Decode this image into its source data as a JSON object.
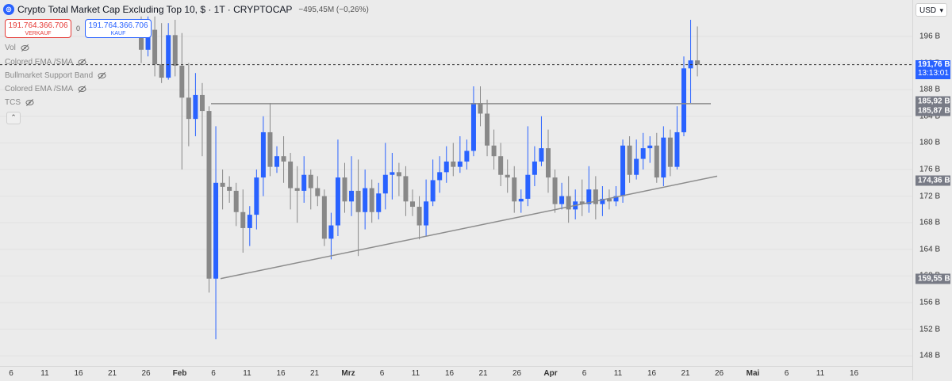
{
  "header": {
    "title": "Crypto Total Market Cap Excluding Top 10, $ · 1T · CRYPTOCAP",
    "change": "−495,45M (−0,26%)",
    "symbol_icon": "globe-icon"
  },
  "trade": {
    "sell_price": "191.764.366.706",
    "sell_label": "VERKAUF",
    "buy_price": "191.764.366.706",
    "buy_label": "KAUF",
    "spread": "0",
    "sell_color": "#e53935",
    "buy_color": "#2962ff"
  },
  "indicators": [
    {
      "label": "Vol"
    },
    {
      "label": "Colored EMA /SMA"
    },
    {
      "label": "Bullmarket Support Band"
    },
    {
      "label": "Colored EMA /SMA"
    },
    {
      "label": "TCS"
    }
  ],
  "currency": "USD",
  "price_axis": {
    "ticks": [
      "196 B",
      "192 B",
      "188 B",
      "184 B",
      "180 B",
      "176 B",
      "172 B",
      "168 B",
      "164 B",
      "160 B",
      "156 B",
      "152 B",
      "148 B"
    ],
    "tags": [
      {
        "text": "191,76 B",
        "sub": "13:13:01",
        "bg": "#2962ff",
        "fg": "#ffffff",
        "value": 191.76
      },
      {
        "text": "185,92 B",
        "bg": "#787b86",
        "fg": "#ffffff",
        "value": 185.92
      },
      {
        "text": "185,87 B",
        "bg": "#787b86",
        "fg": "#ffffff",
        "value": 185.87
      },
      {
        "text": "174,36 B",
        "bg": "#787b86",
        "fg": "#ffffff",
        "value": 174.36
      },
      {
        "text": "159,55 B",
        "bg": "#787b86",
        "fg": "#ffffff",
        "value": 159.55
      }
    ]
  },
  "time_axis": {
    "labels": [
      "6",
      "11",
      "16",
      "21",
      "26",
      "Feb",
      "6",
      "11",
      "16",
      "21",
      "Mrz",
      "6",
      "11",
      "16",
      "21",
      "26",
      "Apr",
      "6",
      "11",
      "16",
      "21",
      "26",
      "Mai",
      "6",
      "11",
      "16"
    ],
    "month_labels": [
      "Feb",
      "Mrz",
      "Apr",
      "Mai"
    ]
  },
  "colors": {
    "up": "#2962ff",
    "down": "#888888",
    "background": "#ebebeb",
    "trendline": "#8c8c8c"
  },
  "chart_data": {
    "type": "candlestick",
    "title": "Crypto Total Market Cap Excluding Top 10, $ · 1T · CRYPTOCAP",
    "unit": "B",
    "ylim": [
      148,
      200
    ],
    "current_price": 191.76,
    "resistance_level": 185.9,
    "support_trendline": [
      {
        "date": "Feb 6",
        "value": 159.6
      },
      {
        "date": "Apr 21",
        "value": 175.0
      }
    ],
    "candles": [
      {
        "date": "Jan 26",
        "o": 196.0,
        "c": 194.0,
        "h": 199.0,
        "l": 192.0
      },
      {
        "date": "Jan 27",
        "o": 194.0,
        "c": 197.5,
        "h": 199.0,
        "l": 193.0
      },
      {
        "date": "Jan 28",
        "o": 197.0,
        "c": 191.8,
        "h": 199.0,
        "l": 190.0
      },
      {
        "date": "Jan 29",
        "o": 191.8,
        "c": 189.8,
        "h": 198.0,
        "l": 189.0
      },
      {
        "date": "Jan 30",
        "o": 189.8,
        "c": 196.2,
        "h": 198.0,
        "l": 189.5
      },
      {
        "date": "Jan 31",
        "o": 196.2,
        "c": 191.6,
        "h": 198.5,
        "l": 190.0
      },
      {
        "date": "Feb 1",
        "o": 191.6,
        "c": 186.8,
        "h": 196.5,
        "l": 176.0
      },
      {
        "date": "Feb 2",
        "o": 186.8,
        "c": 183.6,
        "h": 192.0,
        "l": 179.5
      },
      {
        "date": "Feb 3",
        "o": 183.6,
        "c": 187.2,
        "h": 190.5,
        "l": 181.0
      },
      {
        "date": "Feb 4",
        "o": 187.2,
        "c": 184.8,
        "h": 189.0,
        "l": 178.0
      },
      {
        "date": "Feb 5",
        "o": 184.8,
        "c": 159.6,
        "h": 185.5,
        "l": 157.5
      },
      {
        "date": "Feb 6",
        "o": 159.6,
        "c": 174.0,
        "h": 182.5,
        "l": 150.5
      },
      {
        "date": "Feb 7",
        "o": 174.0,
        "c": 173.4,
        "h": 176.0,
        "l": 170.0
      },
      {
        "date": "Feb 8",
        "o": 173.4,
        "c": 172.8,
        "h": 175.0,
        "l": 171.0
      },
      {
        "date": "Feb 9",
        "o": 172.8,
        "c": 169.6,
        "h": 174.0,
        "l": 167.5
      },
      {
        "date": "Feb 10",
        "o": 169.6,
        "c": 167.2,
        "h": 173.0,
        "l": 163.5
      },
      {
        "date": "Feb 11",
        "o": 167.2,
        "c": 169.2,
        "h": 170.5,
        "l": 164.5
      },
      {
        "date": "Feb 12",
        "o": 169.2,
        "c": 174.8,
        "h": 176.0,
        "l": 167.0
      },
      {
        "date": "Feb 13",
        "o": 174.8,
        "c": 181.6,
        "h": 184.0,
        "l": 172.0
      },
      {
        "date": "Feb 14",
        "o": 181.6,
        "c": 176.4,
        "h": 186.0,
        "l": 175.0
      },
      {
        "date": "Feb 15",
        "o": 176.4,
        "c": 178.0,
        "h": 179.5,
        "l": 175.5
      },
      {
        "date": "Feb 16",
        "o": 178.0,
        "c": 177.2,
        "h": 181.0,
        "l": 174.0
      },
      {
        "date": "Feb 17",
        "o": 177.2,
        "c": 173.2,
        "h": 178.5,
        "l": 170.0
      },
      {
        "date": "Feb 18",
        "o": 173.2,
        "c": 172.8,
        "h": 176.5,
        "l": 168.0
      },
      {
        "date": "Feb 19",
        "o": 172.8,
        "c": 175.2,
        "h": 178.0,
        "l": 171.0
      },
      {
        "date": "Feb 20",
        "o": 175.2,
        "c": 173.2,
        "h": 176.0,
        "l": 170.0
      },
      {
        "date": "Feb 21",
        "o": 173.2,
        "c": 172.0,
        "h": 175.0,
        "l": 170.5
      },
      {
        "date": "Feb 22",
        "o": 172.0,
        "c": 165.6,
        "h": 173.0,
        "l": 164.5
      },
      {
        "date": "Feb 23",
        "o": 165.6,
        "c": 167.6,
        "h": 169.5,
        "l": 162.5
      },
      {
        "date": "Feb 24",
        "o": 167.6,
        "c": 174.8,
        "h": 180.5,
        "l": 166.0
      },
      {
        "date": "Feb 25",
        "o": 174.8,
        "c": 171.2,
        "h": 177.0,
        "l": 169.5
      },
      {
        "date": "Feb 26",
        "o": 171.2,
        "c": 172.8,
        "h": 178.0,
        "l": 169.0
      },
      {
        "date": "Feb 27",
        "o": 172.8,
        "c": 169.6,
        "h": 177.5,
        "l": 163.0
      },
      {
        "date": "Feb 28",
        "o": 169.6,
        "c": 173.2,
        "h": 176.0,
        "l": 167.0
      },
      {
        "date": "Mrz 1",
        "o": 173.2,
        "c": 169.6,
        "h": 174.5,
        "l": 168.0
      },
      {
        "date": "Mrz 2",
        "o": 169.6,
        "c": 172.4,
        "h": 174.0,
        "l": 168.5
      },
      {
        "date": "Mrz 3",
        "o": 172.4,
        "c": 175.2,
        "h": 180.0,
        "l": 170.0
      },
      {
        "date": "Mrz 4",
        "o": 175.2,
        "c": 175.6,
        "h": 178.5,
        "l": 171.5
      },
      {
        "date": "Mrz 5",
        "o": 175.6,
        "c": 175.0,
        "h": 177.0,
        "l": 172.0
      },
      {
        "date": "Mrz 6",
        "o": 175.0,
        "c": 171.2,
        "h": 176.5,
        "l": 169.0
      },
      {
        "date": "Mrz 7",
        "o": 171.2,
        "c": 170.4,
        "h": 173.0,
        "l": 169.0
      },
      {
        "date": "Mrz 8",
        "o": 170.4,
        "c": 167.6,
        "h": 172.0,
        "l": 165.5
      },
      {
        "date": "Mrz 9",
        "o": 167.6,
        "c": 171.2,
        "h": 174.5,
        "l": 166.0
      },
      {
        "date": "Mrz 10",
        "o": 171.2,
        "c": 174.4,
        "h": 177.5,
        "l": 170.5
      },
      {
        "date": "Mrz 11",
        "o": 174.4,
        "c": 175.6,
        "h": 178.0,
        "l": 172.5
      },
      {
        "date": "Mrz 12",
        "o": 175.6,
        "c": 177.2,
        "h": 179.5,
        "l": 174.0
      },
      {
        "date": "Mrz 13",
        "o": 177.2,
        "c": 176.4,
        "h": 180.0,
        "l": 175.0
      },
      {
        "date": "Mrz 14",
        "o": 176.4,
        "c": 177.2,
        "h": 181.0,
        "l": 175.5
      },
      {
        "date": "Mrz 15",
        "o": 177.2,
        "c": 178.8,
        "h": 180.5,
        "l": 176.0
      },
      {
        "date": "Mrz 16",
        "o": 178.8,
        "c": 186.0,
        "h": 188.5,
        "l": 178.0
      },
      {
        "date": "Mrz 17",
        "o": 186.0,
        "c": 184.4,
        "h": 188.5,
        "l": 182.5
      },
      {
        "date": "Mrz 18",
        "o": 184.4,
        "c": 179.6,
        "h": 186.5,
        "l": 178.0
      },
      {
        "date": "Mrz 19",
        "o": 179.6,
        "c": 178.0,
        "h": 182.0,
        "l": 176.0
      },
      {
        "date": "Mrz 20",
        "o": 178.0,
        "c": 175.2,
        "h": 180.0,
        "l": 173.5
      },
      {
        "date": "Mrz 21",
        "o": 175.2,
        "c": 174.8,
        "h": 177.5,
        "l": 172.5
      },
      {
        "date": "Mrz 22",
        "o": 174.8,
        "c": 171.2,
        "h": 176.5,
        "l": 169.5
      },
      {
        "date": "Mrz 23",
        "o": 171.2,
        "c": 171.6,
        "h": 173.0,
        "l": 169.5
      },
      {
        "date": "Mrz 24",
        "o": 171.6,
        "c": 175.2,
        "h": 182.5,
        "l": 170.5
      },
      {
        "date": "Mrz 25",
        "o": 175.2,
        "c": 177.2,
        "h": 179.5,
        "l": 173.5
      },
      {
        "date": "Mrz 26",
        "o": 177.2,
        "c": 179.2,
        "h": 184.0,
        "l": 176.5
      },
      {
        "date": "Mrz 27",
        "o": 179.2,
        "c": 174.8,
        "h": 182.0,
        "l": 172.5
      },
      {
        "date": "Mrz 28",
        "o": 174.8,
        "c": 170.8,
        "h": 176.0,
        "l": 169.5
      },
      {
        "date": "Mrz 29",
        "o": 170.8,
        "c": 172.0,
        "h": 174.0,
        "l": 170.0
      },
      {
        "date": "Mrz 30",
        "o": 172.0,
        "c": 170.0,
        "h": 175.0,
        "l": 168.0
      },
      {
        "date": "Mrz 31",
        "o": 170.0,
        "c": 171.2,
        "h": 173.0,
        "l": 168.5
      },
      {
        "date": "Apr 1",
        "o": 171.2,
        "c": 170.8,
        "h": 174.5,
        "l": 169.0
      },
      {
        "date": "Apr 2",
        "o": 170.8,
        "c": 173.0,
        "h": 176.5,
        "l": 169.5
      },
      {
        "date": "Apr 3",
        "o": 173.0,
        "c": 170.8,
        "h": 175.0,
        "l": 168.5
      },
      {
        "date": "Apr 4",
        "o": 170.8,
        "c": 171.6,
        "h": 173.5,
        "l": 169.0
      },
      {
        "date": "Apr 5",
        "o": 171.6,
        "c": 171.2,
        "h": 173.0,
        "l": 170.0
      },
      {
        "date": "Apr 6",
        "o": 171.2,
        "c": 172.0,
        "h": 173.5,
        "l": 170.5
      },
      {
        "date": "Apr 7",
        "o": 172.0,
        "c": 179.6,
        "h": 180.5,
        "l": 171.0
      },
      {
        "date": "Apr 8",
        "o": 179.6,
        "c": 175.2,
        "h": 181.0,
        "l": 174.0
      },
      {
        "date": "Apr 9",
        "o": 175.2,
        "c": 177.6,
        "h": 180.5,
        "l": 174.5
      },
      {
        "date": "Apr 10",
        "o": 177.6,
        "c": 179.2,
        "h": 181.5,
        "l": 176.0
      },
      {
        "date": "Apr 11",
        "o": 179.2,
        "c": 179.6,
        "h": 181.0,
        "l": 177.0
      },
      {
        "date": "Apr 12",
        "o": 179.6,
        "c": 174.8,
        "h": 181.5,
        "l": 174.0
      },
      {
        "date": "Apr 13",
        "o": 174.8,
        "c": 180.8,
        "h": 182.5,
        "l": 173.5
      },
      {
        "date": "Apr 14",
        "o": 180.8,
        "c": 176.4,
        "h": 182.0,
        "l": 175.0
      },
      {
        "date": "Apr 15",
        "o": 176.4,
        "c": 181.6,
        "h": 185.5,
        "l": 176.0
      },
      {
        "date": "Apr 16",
        "o": 181.6,
        "c": 191.2,
        "h": 193.0,
        "l": 181.0
      },
      {
        "date": "Apr 17",
        "o": 191.2,
        "c": 192.4,
        "h": 198.5,
        "l": 186.0
      },
      {
        "date": "Apr 18",
        "o": 192.4,
        "c": 191.76,
        "h": 197.5,
        "l": 190.0
      }
    ]
  }
}
